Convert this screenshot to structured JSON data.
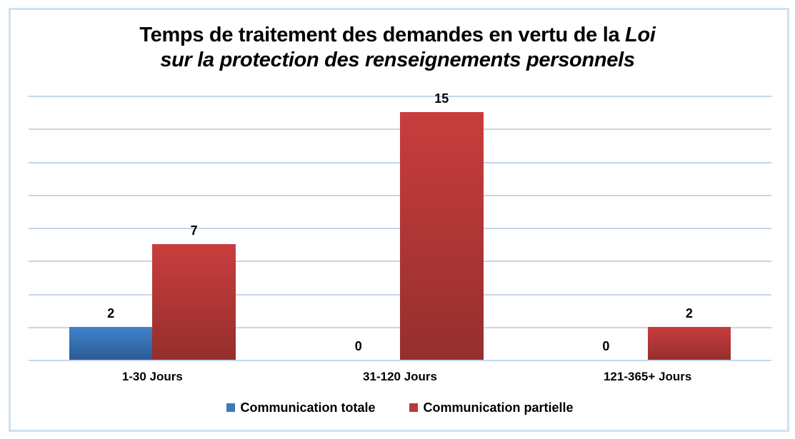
{
  "title": {
    "line1_regular": "Temps de traitement des demandes en vertu de la ",
    "line1_italic": "Loi",
    "line2_italic": "sur la protection des renseignements personnels"
  },
  "chart_data": {
    "type": "bar",
    "title": "Temps de traitement des demandes en vertu de la Loi sur la protection des renseignements personnels",
    "categories": [
      "1-30 Jours",
      "31-120 Jours",
      "121-365+ Jours"
    ],
    "series": [
      {
        "name": "Communication totale",
        "color": "#3c79bc",
        "color_top": "#3f82cb",
        "color_bottom": "#2d5b96",
        "values": [
          2,
          0,
          0
        ]
      },
      {
        "name": "Communication partielle",
        "color": "#b43a3b",
        "color_top": "#c93d3d",
        "color_bottom": "#952f2d",
        "values": [
          7,
          15,
          2
        ]
      }
    ],
    "xlabel": "",
    "ylabel": "",
    "ylim": [
      0,
      16
    ],
    "gridline_step": 2,
    "grid": "horizontal",
    "y_axis_labels_visible": false,
    "data_labels": "above-bars",
    "legend_position": "bottom"
  },
  "colors": {
    "background": "#ffffff",
    "border": "#cfe0f1",
    "gridline": "#c8d6e8",
    "text": "#000000"
  }
}
